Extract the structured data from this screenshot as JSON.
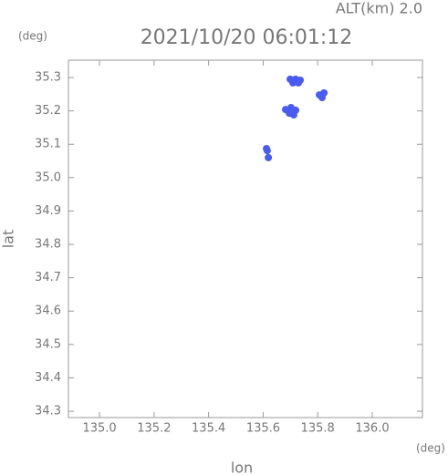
{
  "chart_data": {
    "type": "scatter",
    "title": "2021/10/20 06:01:12",
    "subtitle": "ALT(km) 2.0",
    "x_label": "lon",
    "y_label": "lat",
    "x_unit": "(deg)",
    "y_unit": "(deg)",
    "series": [
      {
        "color": "#4a5cf0",
        "x": [
          135.699,
          135.719,
          135.736,
          135.709,
          135.729,
          135.806,
          135.823,
          135.816,
          135.682,
          135.702,
          135.719,
          135.696,
          135.712,
          135.612,
          135.615,
          135.619
        ],
        "values": [
          35.295,
          35.295,
          35.292,
          35.284,
          35.284,
          35.248,
          35.254,
          35.24,
          35.204,
          35.21,
          35.202,
          35.193,
          35.188,
          35.087,
          35.081,
          35.06
        ]
      }
    ],
    "xlim": [
      134.886,
      136.184
    ],
    "ylim": [
      34.281,
      35.352
    ],
    "xticks": [
      {
        "value": 135,
        "label": "135.0"
      },
      135.2,
      135.4,
      135.6,
      135.8,
      {
        "value": 136,
        "label": "136.0"
      }
    ],
    "yticks": [
      34.3,
      34.4,
      34.5,
      34.6,
      34.7,
      34.8,
      34.9,
      {
        "value": 35,
        "label": "35.0"
      },
      35.1,
      35.2,
      35.3
    ]
  }
}
